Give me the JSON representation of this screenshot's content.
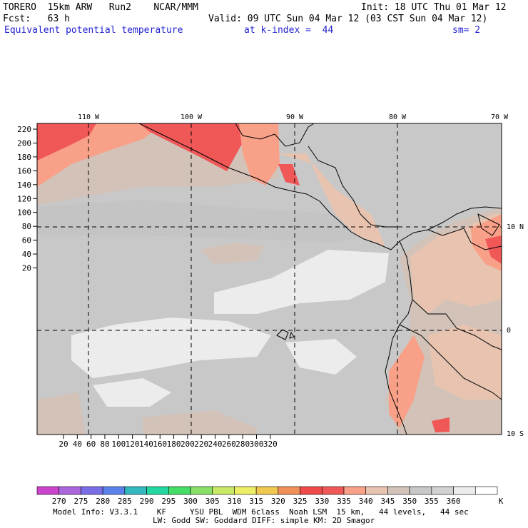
{
  "header": {
    "line1_left": "TORERO  15km ARW   Run2    NCAR/MMM",
    "line1_right": "Init: 18 UTC Thu 01 Mar 12",
    "line2_left": "Fcst:   63 h",
    "line2_right": "Valid: 09 UTC Sun 04 Mar 12 (03 CST Sun 04 Mar 12)",
    "line3_field": "Equivalent potential temperature",
    "line3_level": "at k-index =  44",
    "line3_sm": "sm= 2"
  },
  "map": {
    "ocean_color": "#c8c8c8",
    "land_color": "#d2d2d2",
    "lon_labels": [
      "110 W",
      "100 W",
      "90 W",
      "80 W",
      "70 W"
    ],
    "lat_labels": [
      "10 N",
      "0",
      "10 S"
    ],
    "y_ticks": [
      "220",
      "200",
      "180",
      "160",
      "140",
      "120",
      "100",
      "80",
      "60",
      "40",
      "20"
    ],
    "x_ticks": [
      "20",
      "40",
      "60",
      "80",
      "100",
      "120",
      "140",
      "160",
      "180",
      "200",
      "220",
      "240",
      "260",
      "280",
      "300",
      "320"
    ]
  },
  "legend": {
    "colors": [
      "#cc44cc",
      "#aa66dd",
      "#7a6ee6",
      "#5a82ea",
      "#33b8c0",
      "#22d8a0",
      "#44dd66",
      "#88e066",
      "#c8e866",
      "#eeee66",
      "#f0c850",
      "#f0905a",
      "#f04a4a",
      "#f05858",
      "#f8a088",
      "#e8c4b0",
      "#d2c2b8",
      "#c8c8c8",
      "#d2d2d2",
      "#ececec",
      "#ffffff"
    ],
    "labels": [
      "270",
      "275",
      "280",
      "285",
      "290",
      "295",
      "300",
      "305",
      "310",
      "315",
      "320",
      "325",
      "330",
      "335",
      "340",
      "345",
      "350",
      "355",
      "360"
    ],
    "unit": "K"
  },
  "footer": {
    "line1": "Model Info: V3.3.1    KF     YSU PBL  WDM 6class  Noah LSM  15 km,   44 levels,   44 sec",
    "line2": "LW: Godd SW: Goddard DIFF: simple KM: 2D Smagor"
  }
}
